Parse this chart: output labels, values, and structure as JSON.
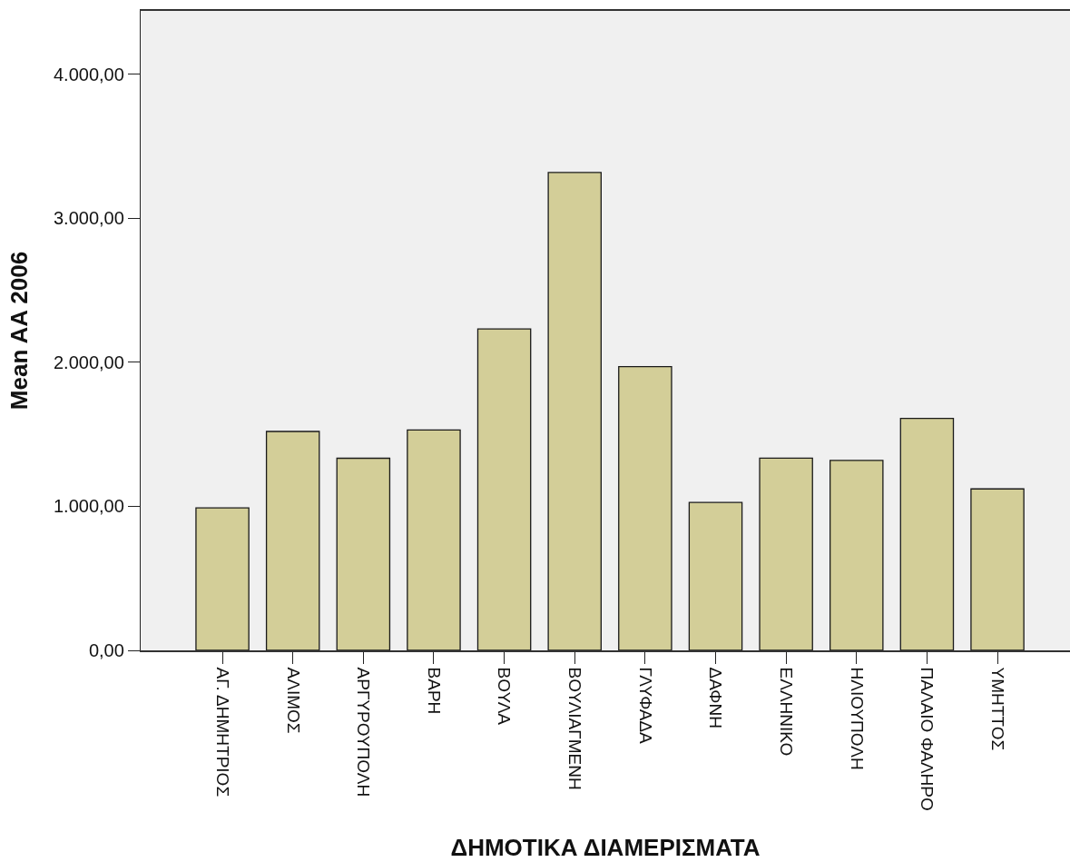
{
  "chart_data": {
    "type": "bar",
    "xlabel": "ΔΗΜΟΤΙΚΑ ΔΙΑΜΕΡΙΣΜΑΤΑ",
    "ylabel": "Mean AA 2006",
    "categories": [
      "ΑΓ. ΔΗΜΗΤΡΙΟΣ",
      "ΑΛΙΜΟΣ",
      "ΑΡΓΥΡΟΥΠΟΛΗ",
      "ΒΑΡΗ",
      "ΒΟΥΛΑ",
      "ΒΟΥΛΙΑΓΜΕΝΗ",
      "ΓΛΥΦΑΔΑ",
      "ΔΑΦΝΗ",
      "ΕΛΛΗΝΙΚΟ",
      "ΗΛΙΟΥΠΟΛΗ",
      "ΠΑΛΑΙΟ ΦΑΛΗΡΟ",
      "ΥΜΗΤΤΟΣ"
    ],
    "values": [
      990,
      1520,
      1334,
      1530,
      2232,
      3318,
      1970,
      1027,
      1335,
      1319,
      1610,
      1121
    ],
    "color": "#d3ce98",
    "ylim": [
      0,
      4440
    ],
    "yticks": [
      {
        "value": 0,
        "label": "0,00"
      },
      {
        "value": 1000,
        "label": "1.000,00"
      },
      {
        "value": 2000,
        "label": "2.000,00"
      },
      {
        "value": 3000,
        "label": "3.000,00"
      },
      {
        "value": 4000,
        "label": "4.000,00"
      }
    ],
    "grid": false
  }
}
